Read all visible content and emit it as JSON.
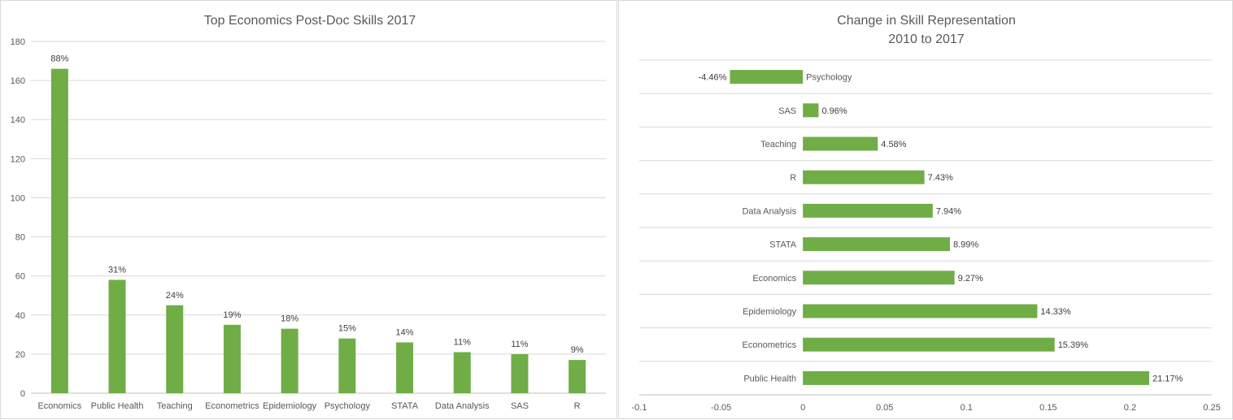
{
  "chart_data": [
    {
      "type": "bar",
      "title": "Top Economics Post-Doc Skills 2017",
      "categories": [
        "Economics",
        "Public Health",
        "Teaching",
        "Econometrics",
        "Epidemiology",
        "Psychology",
        "STATA",
        "Data Analysis",
        "SAS",
        "R"
      ],
      "values": [
        166,
        58,
        45,
        35,
        33,
        28,
        26,
        21,
        20,
        17
      ],
      "data_labels": [
        "88%",
        "31%",
        "24%",
        "19%",
        "18%",
        "15%",
        "14%",
        "11%",
        "11%",
        "9%"
      ],
      "ylim": [
        0,
        180
      ],
      "yticks": [
        "0",
        "20",
        "40",
        "60",
        "80",
        "100",
        "120",
        "140",
        "160",
        "180"
      ],
      "grid": true,
      "bar_color": "#70AD47"
    },
    {
      "type": "bar",
      "orientation": "horizontal",
      "title": "Change in Skill Representation",
      "subtitle": "2010 to 2017",
      "categories": [
        "Psychology",
        "SAS",
        "Teaching",
        "R",
        "Data Analysis",
        "STATA",
        "Economics",
        "Epidemiology",
        "Econometrics",
        "Public Health"
      ],
      "values": [
        -0.0446,
        0.0096,
        0.0458,
        0.0743,
        0.0794,
        0.0899,
        0.0927,
        0.1433,
        0.1539,
        0.2117
      ],
      "data_labels": [
        "-4.46%",
        "0.96%",
        "4.58%",
        "7.43%",
        "7.94%",
        "8.99%",
        "9.27%",
        "14.33%",
        "15.39%",
        "21.17%"
      ],
      "xlim": [
        -0.1,
        0.25
      ],
      "xticks": [
        "-0.1",
        "-0.05",
        "0",
        "0.05",
        "0.1",
        "0.15",
        "0.2",
        "0.25"
      ],
      "grid": true,
      "bar_color": "#70AD47"
    }
  ]
}
